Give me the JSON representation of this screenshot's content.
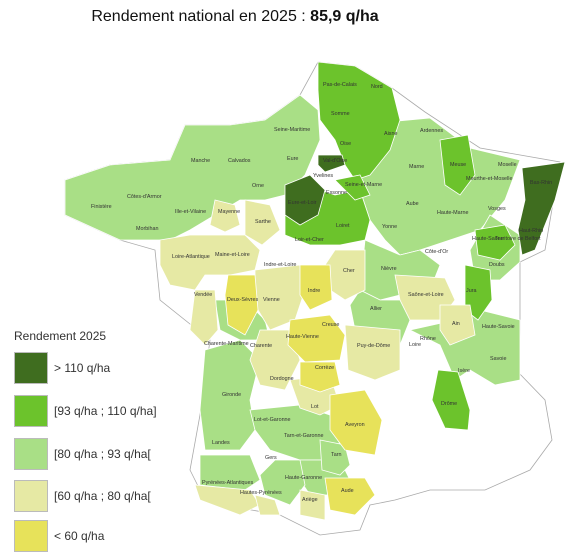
{
  "title": {
    "prefix": "Rendement national en 2025 : ",
    "value": "85,9 q/ha"
  },
  "colors": {
    "c_gt110": "#3f6d1f",
    "c_93_110": "#6cc32c",
    "c_80_93": "#a9df86",
    "c_60_80": "#e6e9a4",
    "c_lt60": "#e7e25a",
    "no_data": "#ffffff"
  },
  "legend": {
    "title": "Rendement 2025",
    "items": [
      {
        "label": "> 110 q/ha",
        "color": "#3f6d1f"
      },
      {
        "label": "[93 q/ha ; 110 q/ha]",
        "color": "#6cc32c"
      },
      {
        "label": "[80 q/ha ; 93 q/ha[",
        "color": "#a9df86"
      },
      {
        "label": "[60 q/ha ; 80 q/ha[",
        "color": "#e6e9a4"
      },
      {
        "label": "< 60 q/ha",
        "color": "#e7e25a"
      }
    ]
  },
  "departments": [
    "Pas-de-Calais",
    "Nord",
    "Somme",
    "Aisne",
    "Ardennes",
    "Oise",
    "Seine-Maritime",
    "Manche",
    "Calvados",
    "Eure",
    "Val-d'Oise",
    "Yvelines",
    "Seine-et-Marne",
    "Marne",
    "Meuse",
    "Moselle",
    "Bas-Rhin",
    "Meurthe-et-Moselle",
    "Orne",
    "Eure-et-Loir",
    "Essonne",
    "Aube",
    "Haute-Marne",
    "Vosges",
    "Haut-Rhin",
    "Finistère",
    "Côtes-d'Armor",
    "Ille-et-Vilaine",
    "Morbihan",
    "Mayenne",
    "Sarthe",
    "Loir-et-Cher",
    "Loiret",
    "Yonne",
    "Côte-d'Or",
    "Haute-Saône",
    "Territoire de Belfort",
    "Loire-Atlantique",
    "Maine-et-Loire",
    "Indre-et-Loire",
    "Cher",
    "Nièvre",
    "Doubs",
    "Vendée",
    "Deux-Sèvres",
    "Vienne",
    "Indre",
    "Saône-et-Loire",
    "Jura",
    "Allier",
    "Creuse",
    "Ain",
    "Haute-Savoie",
    "Charente-Maritime",
    "Charente",
    "Haute-Vienne",
    "Puy-de-Dôme",
    "Rhône",
    "Loire",
    "Savoie",
    "Dordogne",
    "Corrèze",
    "Isère",
    "Gironde",
    "Lot",
    "Drôme",
    "Lot-et-Garonne",
    "Aveyron",
    "Landes",
    "Tarn-et-Garonne",
    "Tarn",
    "Gers",
    "Pyrénées-Atlantiques",
    "Hautes-Pyrénées",
    "Haute-Garonne",
    "Ariège",
    "Aude"
  ]
}
